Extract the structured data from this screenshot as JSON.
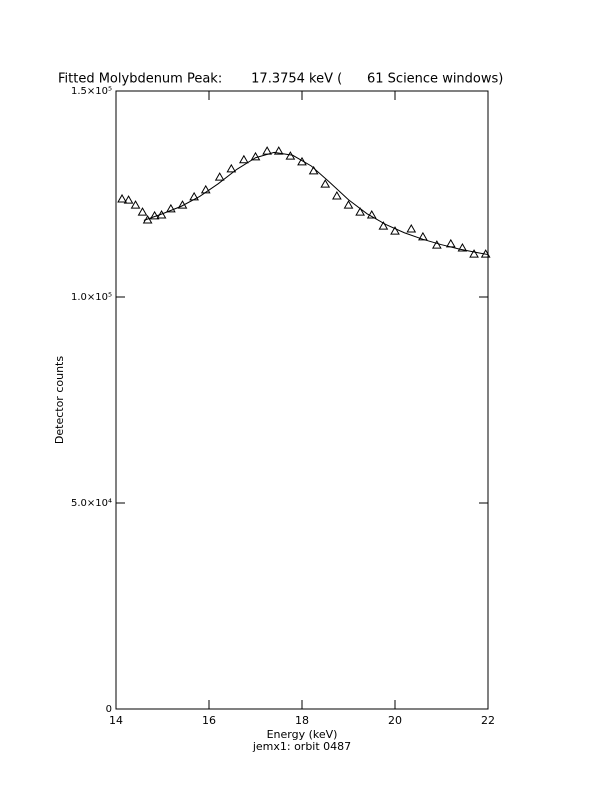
{
  "chart_data": {
    "type": "scatter",
    "title": "Fitted Molybdenum Peak:       17.3754 keV (      61 Science windows)",
    "x_label": "Energy (keV)",
    "y_label": "Detector counts",
    "footer": "jemx1: orbit 0487",
    "xlim": [
      14,
      22
    ],
    "xticks": [
      14,
      16,
      18,
      20,
      22
    ],
    "ylim": [
      0,
      150000
    ],
    "yticks": [
      0,
      {
        "value": 50000,
        "label": "5.0×10⁴"
      },
      {
        "value": 100000,
        "label": "1.0×10⁵"
      },
      {
        "value": 150000,
        "label": "1.5×10⁵"
      }
    ],
    "color": "#000000",
    "series": [
      {
        "marker": "triangle",
        "x": [
          14.13,
          14.27,
          14.42,
          14.57,
          14.68,
          14.83,
          14.98,
          15.18,
          15.43,
          15.68,
          15.93,
          16.23,
          16.48,
          16.75,
          17.0,
          17.25,
          17.5,
          17.75,
          18.0,
          18.25,
          18.5,
          18.75,
          19.0,
          19.25,
          19.5,
          19.75,
          20.0,
          20.35,
          20.6,
          20.9,
          21.2,
          21.45,
          21.7,
          21.95
        ],
        "values": [
          123800,
          123500,
          122300,
          120600,
          118700,
          119700,
          119900,
          121400,
          122300,
          124300,
          126000,
          129100,
          131100,
          133300,
          134000,
          135400,
          135400,
          134200,
          132800,
          130600,
          127400,
          124500,
          122300,
          120600,
          119900,
          117200,
          116000,
          116500,
          114600,
          112600,
          112900,
          111900,
          110400,
          110400
        ]
      },
      {
        "marker": "line",
        "x": [
          14.6,
          15.0,
          15.4,
          15.8,
          16.2,
          16.6,
          17.0,
          17.4,
          17.8,
          18.2,
          18.6,
          19.0,
          19.4,
          19.8,
          20.2,
          20.6,
          21.0,
          21.4,
          21.8,
          22.0
        ],
        "values": [
          118600,
          120200,
          122000,
          124400,
          127500,
          131000,
          133800,
          135100,
          134400,
          131800,
          127800,
          123600,
          120200,
          117600,
          115600,
          114000,
          112700,
          111600,
          110700,
          110300
        ]
      }
    ]
  }
}
